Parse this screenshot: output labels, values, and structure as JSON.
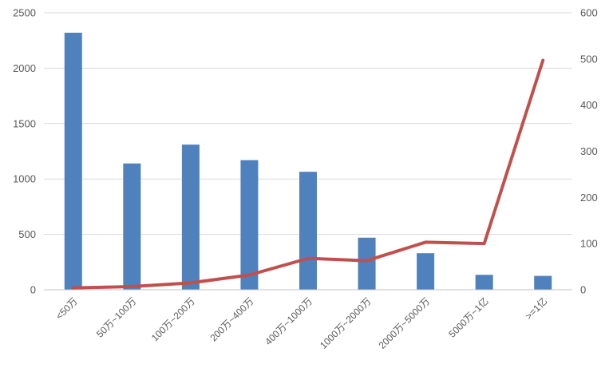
{
  "chart_data": {
    "type": "bar+line",
    "categories": [
      "<50万",
      "50万~100万",
      "100万~200万",
      "200万~400万",
      "400万~1000万",
      "1000万~2000万",
      "2000万~5000万",
      "5000万~1亿",
      ">=1亿"
    ],
    "series": [
      {
        "name": "bars",
        "chart_type": "bar",
        "y_axis": "left",
        "color": "#4F81BD",
        "values": [
          2320,
          1140,
          1310,
          1170,
          1065,
          470,
          330,
          135,
          125
        ]
      },
      {
        "name": "line",
        "chart_type": "line",
        "y_axis": "right",
        "color": "#C0504D",
        "values": [
          4,
          7,
          15,
          32,
          68,
          63,
          103,
          100,
          497
        ]
      }
    ],
    "left_axis": {
      "min": 0,
      "max": 2500,
      "step": 500,
      "tick_labels": [
        "0",
        "500",
        "1000",
        "1500",
        "2000",
        "2500"
      ]
    },
    "right_axis": {
      "min": 0,
      "max": 600,
      "step": 100,
      "tick_labels": [
        "0",
        "100",
        "200",
        "300",
        "400",
        "500",
        "600"
      ]
    },
    "grid": true,
    "legend": false,
    "x_label_rotation_deg": 45,
    "colors": {
      "background": "#FFFFFF",
      "gridline": "#D9D9D9",
      "axis_line": "#C6C6C6",
      "tick_label": "#595959"
    }
  }
}
